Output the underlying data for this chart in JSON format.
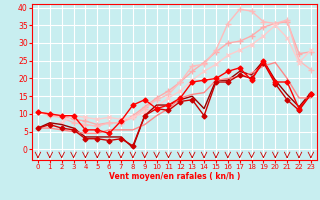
{
  "title": "",
  "xlabel": "Vent moyen/en rafales ( kn/h )",
  "background_color": "#c8eef0",
  "grid_color": "#ffffff",
  "xlim": [
    -0.5,
    23.5
  ],
  "ylim": [
    -3,
    41
  ],
  "yticks": [
    0,
    5,
    10,
    15,
    20,
    25,
    30,
    35,
    40
  ],
  "xticks": [
    0,
    1,
    2,
    3,
    4,
    5,
    6,
    7,
    8,
    9,
    10,
    11,
    12,
    13,
    14,
    15,
    16,
    17,
    18,
    19,
    20,
    21,
    22,
    23
  ],
  "lines": [
    {
      "x": [
        0,
        1,
        2,
        3,
        4,
        5,
        6,
        7,
        8,
        9,
        10,
        11,
        12,
        13,
        14,
        15,
        16,
        17,
        18,
        19,
        20,
        21,
        22,
        23
      ],
      "y": [
        10.5,
        10.0,
        9.5,
        9.5,
        5.5,
        5.5,
        4.5,
        8.0,
        12.5,
        14.0,
        11.5,
        12.5,
        14.5,
        19.0,
        19.5,
        20.0,
        22.0,
        23.0,
        19.5,
        25.0,
        19.0,
        19.0,
        11.5,
        15.5
      ],
      "color": "#ff0000",
      "linewidth": 1.0,
      "marker": "D",
      "markersize": 2.5,
      "zorder": 5
    },
    {
      "x": [
        0,
        1,
        2,
        3,
        4,
        5,
        6,
        7,
        8,
        9,
        10,
        11,
        12,
        13,
        14,
        15,
        16,
        17,
        18,
        19,
        20,
        21,
        22,
        23
      ],
      "y": [
        6.0,
        7.0,
        6.0,
        5.5,
        3.0,
        3.0,
        2.5,
        3.0,
        1.0,
        9.5,
        11.5,
        11.0,
        13.5,
        14.0,
        9.5,
        19.0,
        19.0,
        21.0,
        20.0,
        24.5,
        18.5,
        14.0,
        11.0,
        15.5
      ],
      "color": "#cc0000",
      "linewidth": 1.0,
      "marker": "D",
      "markersize": 2.5,
      "zorder": 4
    },
    {
      "x": [
        0,
        1,
        2,
        3,
        4,
        5,
        6,
        7,
        8,
        9,
        10,
        11,
        12,
        13,
        14,
        15,
        16,
        17,
        18,
        19,
        20,
        21,
        22,
        23
      ],
      "y": [
        6.0,
        7.5,
        7.0,
        6.0,
        3.5,
        3.5,
        3.5,
        3.5,
        0.5,
        9.5,
        12.5,
        12.5,
        14.0,
        15.0,
        11.5,
        19.5,
        19.5,
        22.0,
        21.0,
        25.0,
        19.5,
        15.5,
        12.0,
        16.0
      ],
      "color": "#990000",
      "linewidth": 1.0,
      "marker": null,
      "markersize": 0,
      "zorder": 3
    },
    {
      "x": [
        0,
        1,
        2,
        3,
        4,
        5,
        6,
        7,
        8,
        9,
        10,
        11,
        12,
        13,
        14,
        15,
        16,
        17,
        18,
        19,
        20,
        21,
        22,
        23
      ],
      "y": [
        10.5,
        10.0,
        9.5,
        8.5,
        8.0,
        7.0,
        7.5,
        7.5,
        9.5,
        12.0,
        14.5,
        16.5,
        19.0,
        22.0,
        24.5,
        27.5,
        30.0,
        30.5,
        32.0,
        34.5,
        35.5,
        36.0,
        27.0,
        27.5
      ],
      "color": "#ffaaaa",
      "linewidth": 1.0,
      "marker": "+",
      "markersize": 4,
      "zorder": 2
    },
    {
      "x": [
        0,
        1,
        2,
        3,
        4,
        5,
        6,
        7,
        8,
        9,
        10,
        11,
        12,
        13,
        14,
        15,
        16,
        17,
        18,
        19,
        20,
        21,
        22,
        23
      ],
      "y": [
        10.5,
        9.5,
        9.0,
        7.5,
        7.0,
        6.5,
        7.5,
        7.5,
        9.0,
        11.5,
        14.0,
        15.5,
        19.0,
        23.5,
        24.0,
        28.0,
        35.5,
        39.5,
        39.0,
        36.0,
        35.5,
        36.5,
        25.0,
        22.5
      ],
      "color": "#ffbbbb",
      "linewidth": 1.0,
      "marker": "+",
      "markersize": 4,
      "zorder": 2
    },
    {
      "x": [
        0,
        1,
        2,
        3,
        4,
        5,
        6,
        7,
        8,
        9,
        10,
        11,
        12,
        13,
        14,
        15,
        16,
        17,
        18,
        19,
        20,
        21,
        22,
        23
      ],
      "y": [
        6.0,
        6.0,
        5.5,
        5.0,
        4.5,
        4.5,
        5.5,
        5.5,
        5.5,
        7.0,
        9.5,
        11.5,
        14.5,
        15.5,
        16.0,
        19.5,
        20.0,
        20.5,
        21.5,
        23.5,
        24.5,
        20.0,
        14.5,
        14.5
      ],
      "color": "#ff8888",
      "linewidth": 1.0,
      "marker": null,
      "markersize": 0,
      "zorder": 3
    },
    {
      "x": [
        0,
        1,
        2,
        3,
        4,
        5,
        6,
        7,
        8,
        9,
        10,
        11,
        12,
        13,
        14,
        15,
        16,
        17,
        18,
        19,
        20,
        21,
        22,
        23
      ],
      "y": [
        6.0,
        7.0,
        7.5,
        9.5,
        9.0,
        8.5,
        9.0,
        8.5,
        9.0,
        10.5,
        12.0,
        14.5,
        16.5,
        19.5,
        22.0,
        24.0,
        26.5,
        28.0,
        29.5,
        32.0,
        35.0,
        31.5,
        24.5,
        28.0
      ],
      "color": "#ffcccc",
      "linewidth": 1.0,
      "marker": "x",
      "markersize": 3,
      "zorder": 2
    }
  ]
}
